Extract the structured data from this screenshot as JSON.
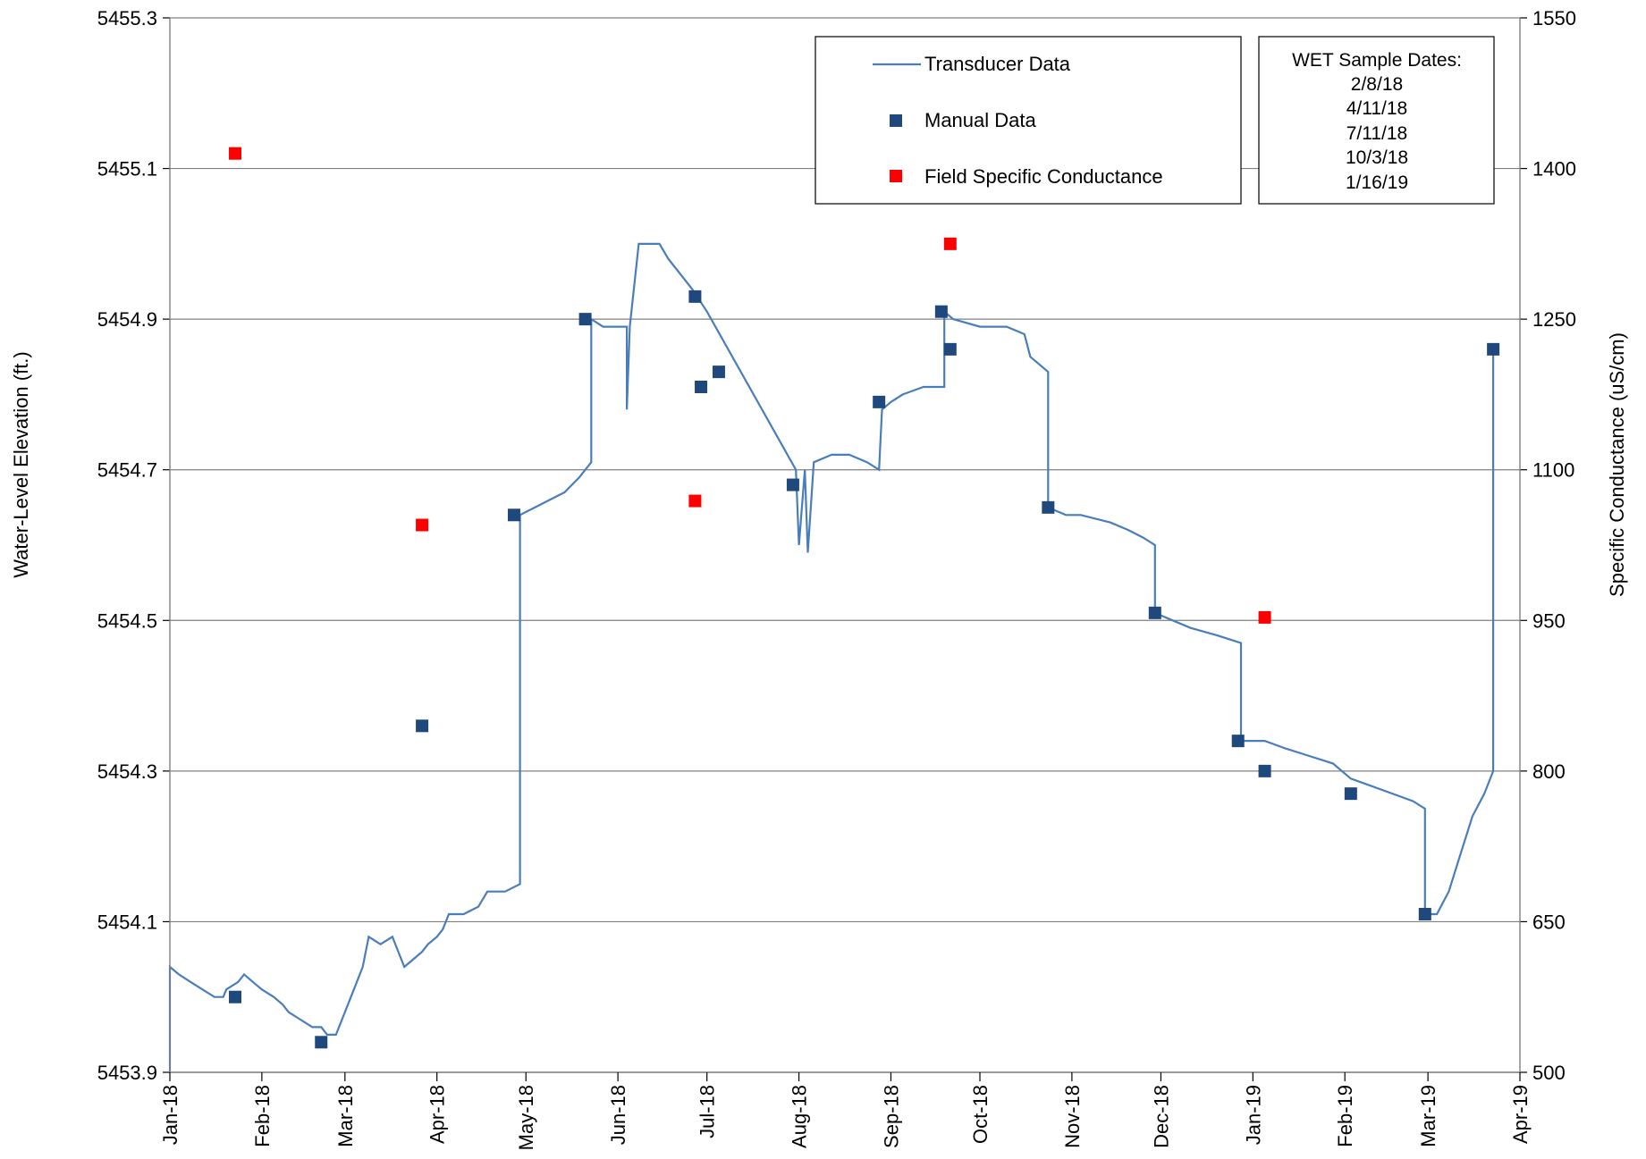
{
  "chart_data": {
    "type": "line",
    "xlabel": "",
    "ylabel": "Water-Level Elevation (ft.)",
    "y2label": "Specific Conductance (uS/cm)",
    "x_tick_labels": [
      "Jan-18",
      "Feb-18",
      "Mar-18",
      "Apr-18",
      "May-18",
      "Jun-18",
      "Jul-18",
      "Aug-18",
      "Sep-18",
      "Oct-18",
      "Nov-18",
      "Dec-18",
      "Jan-19",
      "Feb-19",
      "Mar-19",
      "Apr-19"
    ],
    "x_tick_dates": [
      "2018-01-01",
      "2018-02-01",
      "2018-03-01",
      "2018-04-01",
      "2018-05-01",
      "2018-06-01",
      "2018-07-01",
      "2018-08-01",
      "2018-09-01",
      "2018-10-01",
      "2018-11-01",
      "2018-12-01",
      "2019-01-01",
      "2019-02-01",
      "2019-03-01",
      "2019-04-01"
    ],
    "xlim": [
      "2018-01-01",
      "2019-04-01"
    ],
    "ylim": [
      5453.9,
      5455.3
    ],
    "y_ticks": [
      "5453.9",
      "5454.1",
      "5454.3",
      "5454.5",
      "5454.7",
      "5454.9",
      "5455.1",
      "5455.3"
    ],
    "y2lim": [
      500,
      1550
    ],
    "y2_ticks": [
      "500",
      "650",
      "800",
      "950",
      "1100",
      "1250",
      "1400",
      "1550"
    ],
    "grid": "horizontal",
    "colors": {
      "transducer": "#4a7ebb",
      "manual": "#1f497d",
      "conductance": "#ff0000",
      "grid": "#808080"
    },
    "legend": {
      "position": "top-right",
      "entries": [
        "Transducer Data",
        "Manual Data",
        "Field Specific Conductance"
      ]
    },
    "annotation": {
      "title": "WET Sample Dates:",
      "lines": [
        "2/8/18",
        "4/11/18",
        "7/11/18",
        "10/3/18",
        "1/16/19"
      ]
    },
    "series": [
      {
        "name": "Transducer Data",
        "axis": "left",
        "style": "line",
        "points": [
          [
            "2018-01-01",
            5453.9
          ],
          [
            "2018-01-01",
            5454.04
          ],
          [
            "2018-01-04",
            5454.03
          ],
          [
            "2018-01-08",
            5454.02
          ],
          [
            "2018-01-12",
            5454.01
          ],
          [
            "2018-01-16",
            5454.0
          ],
          [
            "2018-01-19",
            5454.0
          ],
          [
            "2018-01-20",
            5454.01
          ],
          [
            "2018-01-24",
            5454.02
          ],
          [
            "2018-01-26",
            5454.03
          ],
          [
            "2018-01-29",
            5454.02
          ],
          [
            "2018-02-01",
            5454.01
          ],
          [
            "2018-02-05",
            5454.0
          ],
          [
            "2018-02-08",
            5453.99
          ],
          [
            "2018-02-10",
            5453.98
          ],
          [
            "2018-02-14",
            5453.97
          ],
          [
            "2018-02-18",
            5453.96
          ],
          [
            "2018-02-21",
            5453.96
          ],
          [
            "2018-02-23",
            5453.95
          ],
          [
            "2018-02-26",
            5453.95
          ],
          [
            "2018-03-01",
            5453.98
          ],
          [
            "2018-03-04",
            5454.01
          ],
          [
            "2018-03-07",
            5454.04
          ],
          [
            "2018-03-09",
            5454.08
          ],
          [
            "2018-03-13",
            5454.07
          ],
          [
            "2018-03-17",
            5454.08
          ],
          [
            "2018-03-19",
            5454.06
          ],
          [
            "2018-03-21",
            5454.04
          ],
          [
            "2018-03-24",
            5454.05
          ],
          [
            "2018-03-27",
            5454.06
          ],
          [
            "2018-03-29",
            5454.07
          ],
          [
            "2018-04-01",
            5454.08
          ],
          [
            "2018-04-03",
            5454.09
          ],
          [
            "2018-04-05",
            5454.11
          ],
          [
            "2018-04-10",
            5454.11
          ],
          [
            "2018-04-15",
            5454.12
          ],
          [
            "2018-04-18",
            5454.14
          ],
          [
            "2018-04-24",
            5454.14
          ],
          [
            "2018-04-29",
            5454.15
          ],
          [
            "2018-04-29",
            5454.64
          ],
          [
            "2018-05-04",
            5454.65
          ],
          [
            "2018-05-09",
            5454.66
          ],
          [
            "2018-05-14",
            5454.67
          ],
          [
            "2018-05-19",
            5454.69
          ],
          [
            "2018-05-23",
            5454.71
          ],
          [
            "2018-05-23",
            5454.9
          ],
          [
            "2018-05-27",
            5454.89
          ],
          [
            "2018-06-01",
            5454.89
          ],
          [
            "2018-06-04",
            5454.89
          ],
          [
            "2018-06-04",
            5454.78
          ],
          [
            "2018-06-05",
            5454.89
          ],
          [
            "2018-06-08",
            5455.0
          ],
          [
            "2018-06-15",
            5455.0
          ],
          [
            "2018-06-18",
            5454.98
          ],
          [
            "2018-06-26",
            5454.94
          ],
          [
            "2018-07-01",
            5454.91
          ],
          [
            "2018-07-31",
            5454.7
          ],
          [
            "2018-08-01",
            5454.6
          ],
          [
            "2018-08-03",
            5454.7
          ],
          [
            "2018-08-04",
            5454.59
          ],
          [
            "2018-08-06",
            5454.71
          ],
          [
            "2018-08-12",
            5454.72
          ],
          [
            "2018-08-18",
            5454.72
          ],
          [
            "2018-08-24",
            5454.71
          ],
          [
            "2018-08-28",
            5454.7
          ],
          [
            "2018-08-29",
            5454.78
          ],
          [
            "2018-09-01",
            5454.79
          ],
          [
            "2018-09-05",
            5454.8
          ],
          [
            "2018-09-12",
            5454.81
          ],
          [
            "2018-09-19",
            5454.81
          ],
          [
            "2018-09-19",
            5454.91
          ],
          [
            "2018-09-22",
            5454.9
          ],
          [
            "2018-10-01",
            5454.89
          ],
          [
            "2018-10-10",
            5454.89
          ],
          [
            "2018-10-16",
            5454.88
          ],
          [
            "2018-10-18",
            5454.85
          ],
          [
            "2018-10-24",
            5454.83
          ],
          [
            "2018-10-24",
            5454.65
          ],
          [
            "2018-10-30",
            5454.64
          ],
          [
            "2018-11-04",
            5454.64
          ],
          [
            "2018-11-14",
            5454.63
          ],
          [
            "2018-11-20",
            5454.62
          ],
          [
            "2018-11-25",
            5454.61
          ],
          [
            "2018-11-29",
            5454.6
          ],
          [
            "2018-11-29",
            5454.51
          ],
          [
            "2018-12-05",
            5454.5
          ],
          [
            "2018-12-11",
            5454.49
          ],
          [
            "2018-12-20",
            5454.48
          ],
          [
            "2018-12-28",
            5454.47
          ],
          [
            "2018-12-28",
            5454.34
          ],
          [
            "2019-01-05",
            5454.34
          ],
          [
            "2019-01-12",
            5454.33
          ],
          [
            "2019-01-20",
            5454.32
          ],
          [
            "2019-01-28",
            5454.31
          ],
          [
            "2019-02-03",
            5454.29
          ],
          [
            "2019-02-10",
            5454.28
          ],
          [
            "2019-02-17",
            5454.27
          ],
          [
            "2019-02-24",
            5454.26
          ],
          [
            "2019-02-28",
            5454.25
          ],
          [
            "2019-02-28",
            5454.11
          ],
          [
            "2019-03-04",
            5454.11
          ],
          [
            "2019-03-08",
            5454.14
          ],
          [
            "2019-03-12",
            5454.19
          ],
          [
            "2019-03-16",
            5454.24
          ],
          [
            "2019-03-20",
            5454.27
          ],
          [
            "2019-03-23",
            5454.3
          ],
          [
            "2019-03-23",
            5454.86
          ]
        ]
      },
      {
        "name": "Manual Data",
        "axis": "left",
        "style": "marker",
        "points": [
          [
            "2018-01-23",
            5454.0
          ],
          [
            "2018-02-21",
            5453.94
          ],
          [
            "2018-03-27",
            5454.36
          ],
          [
            "2018-04-27",
            5454.64
          ],
          [
            "2018-05-21",
            5454.9
          ],
          [
            "2018-06-27",
            5454.93
          ],
          [
            "2018-06-29",
            5454.81
          ],
          [
            "2018-07-05",
            5454.83
          ],
          [
            "2018-07-30",
            5454.68
          ],
          [
            "2018-08-28",
            5454.79
          ],
          [
            "2018-09-18",
            5454.91
          ],
          [
            "2018-09-21",
            5454.86
          ],
          [
            "2018-10-24",
            5454.65
          ],
          [
            "2018-11-29",
            5454.51
          ],
          [
            "2018-12-27",
            5454.34
          ],
          [
            "2019-01-05",
            5454.3
          ],
          [
            "2019-02-03",
            5454.27
          ],
          [
            "2019-02-28",
            5454.11
          ],
          [
            "2019-03-23",
            5454.86
          ]
        ]
      },
      {
        "name": "Field Specific Conductance",
        "axis": "right",
        "style": "marker",
        "points": [
          [
            "2018-01-23",
            1415
          ],
          [
            "2018-03-27",
            1045
          ],
          [
            "2018-06-27",
            1069
          ],
          [
            "2018-09-21",
            1325
          ],
          [
            "2019-01-05",
            953
          ]
        ]
      }
    ]
  }
}
